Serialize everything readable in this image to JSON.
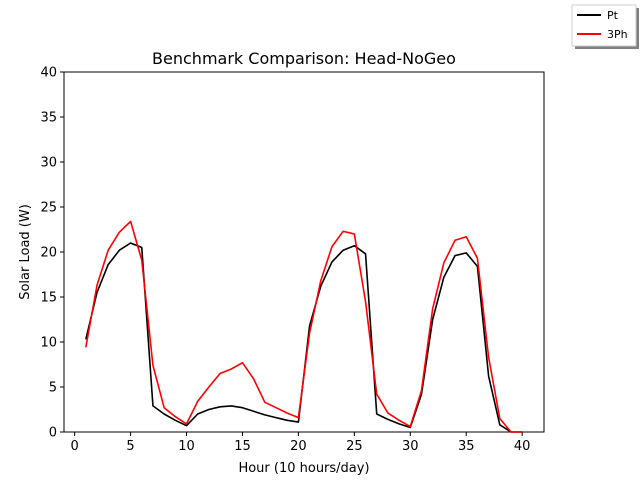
{
  "chart_data": {
    "type": "line",
    "title": "Benchmark Comparison: Head-NoGeo",
    "xlabel": "Hour (10 hours/day)",
    "ylabel": "Solar Load (W)",
    "xlim": [
      -0.95,
      41.95
    ],
    "ylim": [
      0,
      40
    ],
    "xticks": [
      0,
      5,
      10,
      15,
      20,
      25,
      30,
      35,
      40
    ],
    "yticks": [
      0,
      5,
      10,
      15,
      20,
      25,
      30,
      35,
      40
    ],
    "grid": false,
    "legend_position": "top-right (outside)",
    "x": [
      1,
      2,
      3,
      4,
      5,
      6,
      7,
      8,
      9,
      10,
      11,
      12,
      13,
      14,
      15,
      16,
      17,
      18,
      19,
      20,
      21,
      22,
      23,
      24,
      25,
      26,
      27,
      28,
      29,
      30,
      31,
      32,
      33,
      34,
      35,
      36,
      37,
      38,
      39,
      40
    ],
    "series": [
      {
        "name": "Pt",
        "color": "#000000",
        "values": [
          10.3,
          15.5,
          18.6,
          20.2,
          21.0,
          20.5,
          2.9,
          2.0,
          1.3,
          0.7,
          2.0,
          2.5,
          2.8,
          2.9,
          2.7,
          2.3,
          1.9,
          1.6,
          1.3,
          1.1,
          11.8,
          16.2,
          18.9,
          20.2,
          20.7,
          19.8,
          2.0,
          1.4,
          0.9,
          0.5,
          4.2,
          12.5,
          17.2,
          19.6,
          19.9,
          18.4,
          6.2,
          0.8,
          0.0,
          0.0
        ]
      },
      {
        "name": "3Ph",
        "color": "#ff0000",
        "values": [
          9.4,
          16.3,
          20.2,
          22.2,
          23.4,
          19.1,
          7.4,
          2.7,
          1.7,
          0.9,
          3.4,
          5.0,
          6.5,
          7.0,
          7.7,
          5.9,
          3.3,
          2.7,
          2.1,
          1.6,
          11.0,
          16.8,
          20.6,
          22.3,
          22.0,
          14.5,
          4.2,
          2.1,
          1.3,
          0.6,
          4.6,
          13.7,
          18.8,
          21.3,
          21.7,
          19.3,
          8.3,
          1.5,
          0.0,
          0.0
        ]
      }
    ]
  }
}
